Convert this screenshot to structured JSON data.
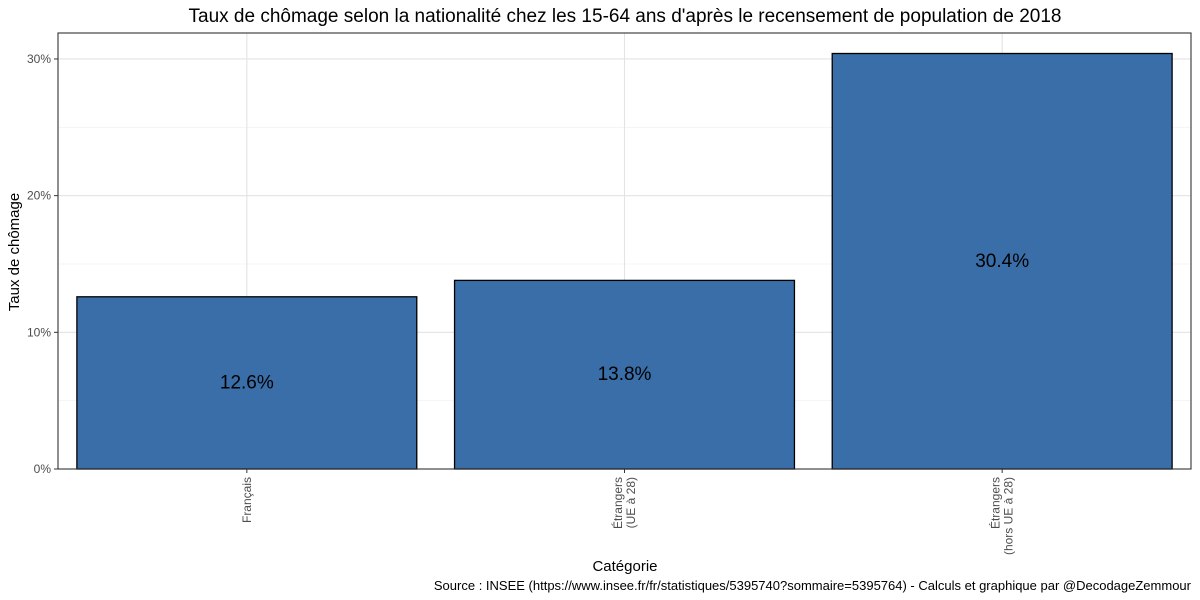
{
  "chart_data": {
    "type": "bar",
    "title": "Taux de chômage selon la nationalité chez les 15-64 ans d'après le recensement de population de 2018",
    "xlabel": "Catégorie",
    "ylabel": "Taux de chômage",
    "categories": [
      [
        "Français"
      ],
      [
        "Étrangers",
        "(UE à 28)"
      ],
      [
        "Étrangers",
        "(hors UE à 28)"
      ]
    ],
    "values": [
      12.6,
      13.8,
      30.4
    ],
    "value_labels": [
      "12.6%",
      "13.8%",
      "30.4%"
    ],
    "ylim": [
      0,
      31.9
    ],
    "yticks": [
      0,
      10,
      20,
      30
    ],
    "ytick_labels": [
      "0%",
      "10%",
      "20%",
      "30%"
    ],
    "grid": true,
    "bar_color": "#3a6ea8",
    "bar_edge_color": "#000000",
    "caption": "Source : INSEE (https://www.insee.fr/fr/statistiques/5395740?sommaire=5395764) - Calculs et graphique par @DecodageZemmour"
  }
}
